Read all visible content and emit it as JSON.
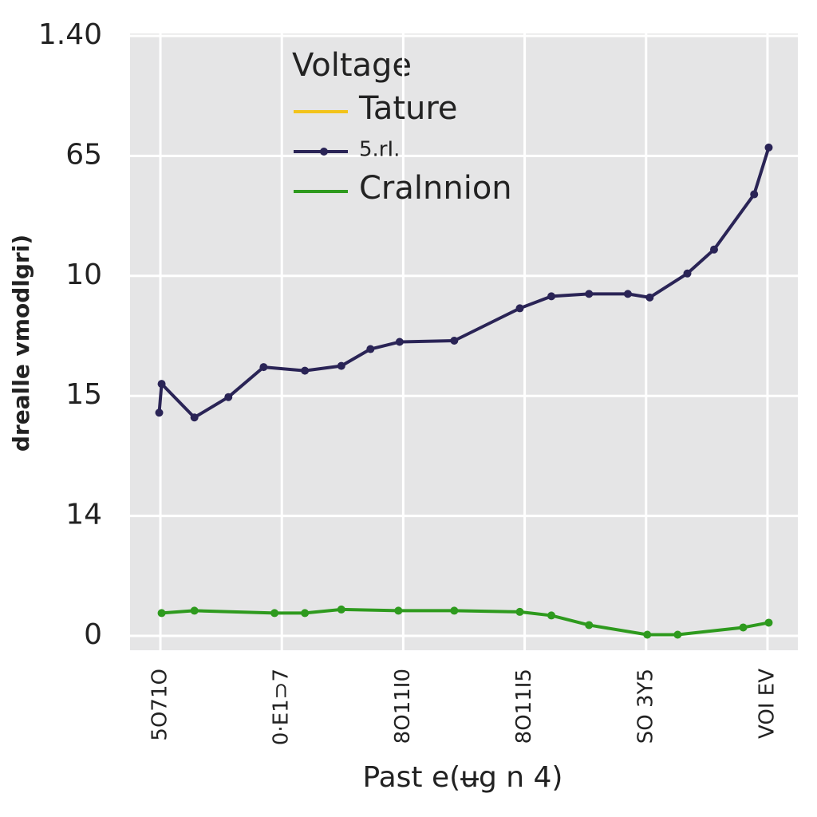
{
  "chart_data": {
    "type": "line",
    "legend_title": "Voltage",
    "ylabel": "drealle vmodlgri)",
    "xlabel": "Past e(ʉg n 4)",
    "xlim": [
      -0.25,
      5.25
    ],
    "xticks": [
      {
        "value": 0,
        "label": "5O71O"
      },
      {
        "value": 1,
        "label": "0·E1⊃7"
      },
      {
        "value": 2,
        "label": "8O11I0"
      },
      {
        "value": 3,
        "label": "8O11I5"
      },
      {
        "value": 4,
        "label": "SO 3Y5"
      },
      {
        "value": 5,
        "label": "VOI EV"
      }
    ],
    "ylim": [
      0,
      5
    ],
    "yticks": [
      {
        "value": 0,
        "label": "0"
      },
      {
        "value": 1,
        "label": "14"
      },
      {
        "value": 2,
        "label": "15"
      },
      {
        "value": 3,
        "label": "10"
      },
      {
        "value": 4,
        "label": "65"
      },
      {
        "value": 5,
        "label": "1.40"
      }
    ],
    "grid": true,
    "legend": "upper left",
    "series": [
      {
        "name": "Tature",
        "color": "#f2c31b",
        "x": [],
        "values": []
      },
      {
        "name": "5.rI.",
        "color": "#2a2456",
        "markers": true,
        "x": [
          -0.01,
          0.01,
          0.28,
          0.56,
          0.85,
          1.19,
          1.49,
          1.73,
          1.97,
          2.42,
          2.96,
          3.22,
          3.53,
          3.85,
          4.03,
          4.34,
          4.56,
          4.89,
          5.01
        ],
        "values": [
          1.86,
          2.1,
          1.82,
          1.99,
          2.24,
          2.21,
          2.25,
          2.39,
          2.45,
          2.46,
          2.73,
          2.83,
          2.85,
          2.85,
          2.82,
          3.02,
          3.22,
          3.68,
          4.07
        ]
      },
      {
        "name": "Cralnnion",
        "color": "#2e9a1e",
        "markers": true,
        "x": [
          0.01,
          0.28,
          0.94,
          1.19,
          1.49,
          1.96,
          2.42,
          2.96,
          3.22,
          3.53,
          4.01,
          4.26,
          4.8,
          5.01
        ],
        "values": [
          0.19,
          0.21,
          0.19,
          0.19,
          0.22,
          0.21,
          0.21,
          0.2,
          0.17,
          0.09,
          0.01,
          0.01,
          0.07,
          0.11
        ]
      }
    ]
  }
}
